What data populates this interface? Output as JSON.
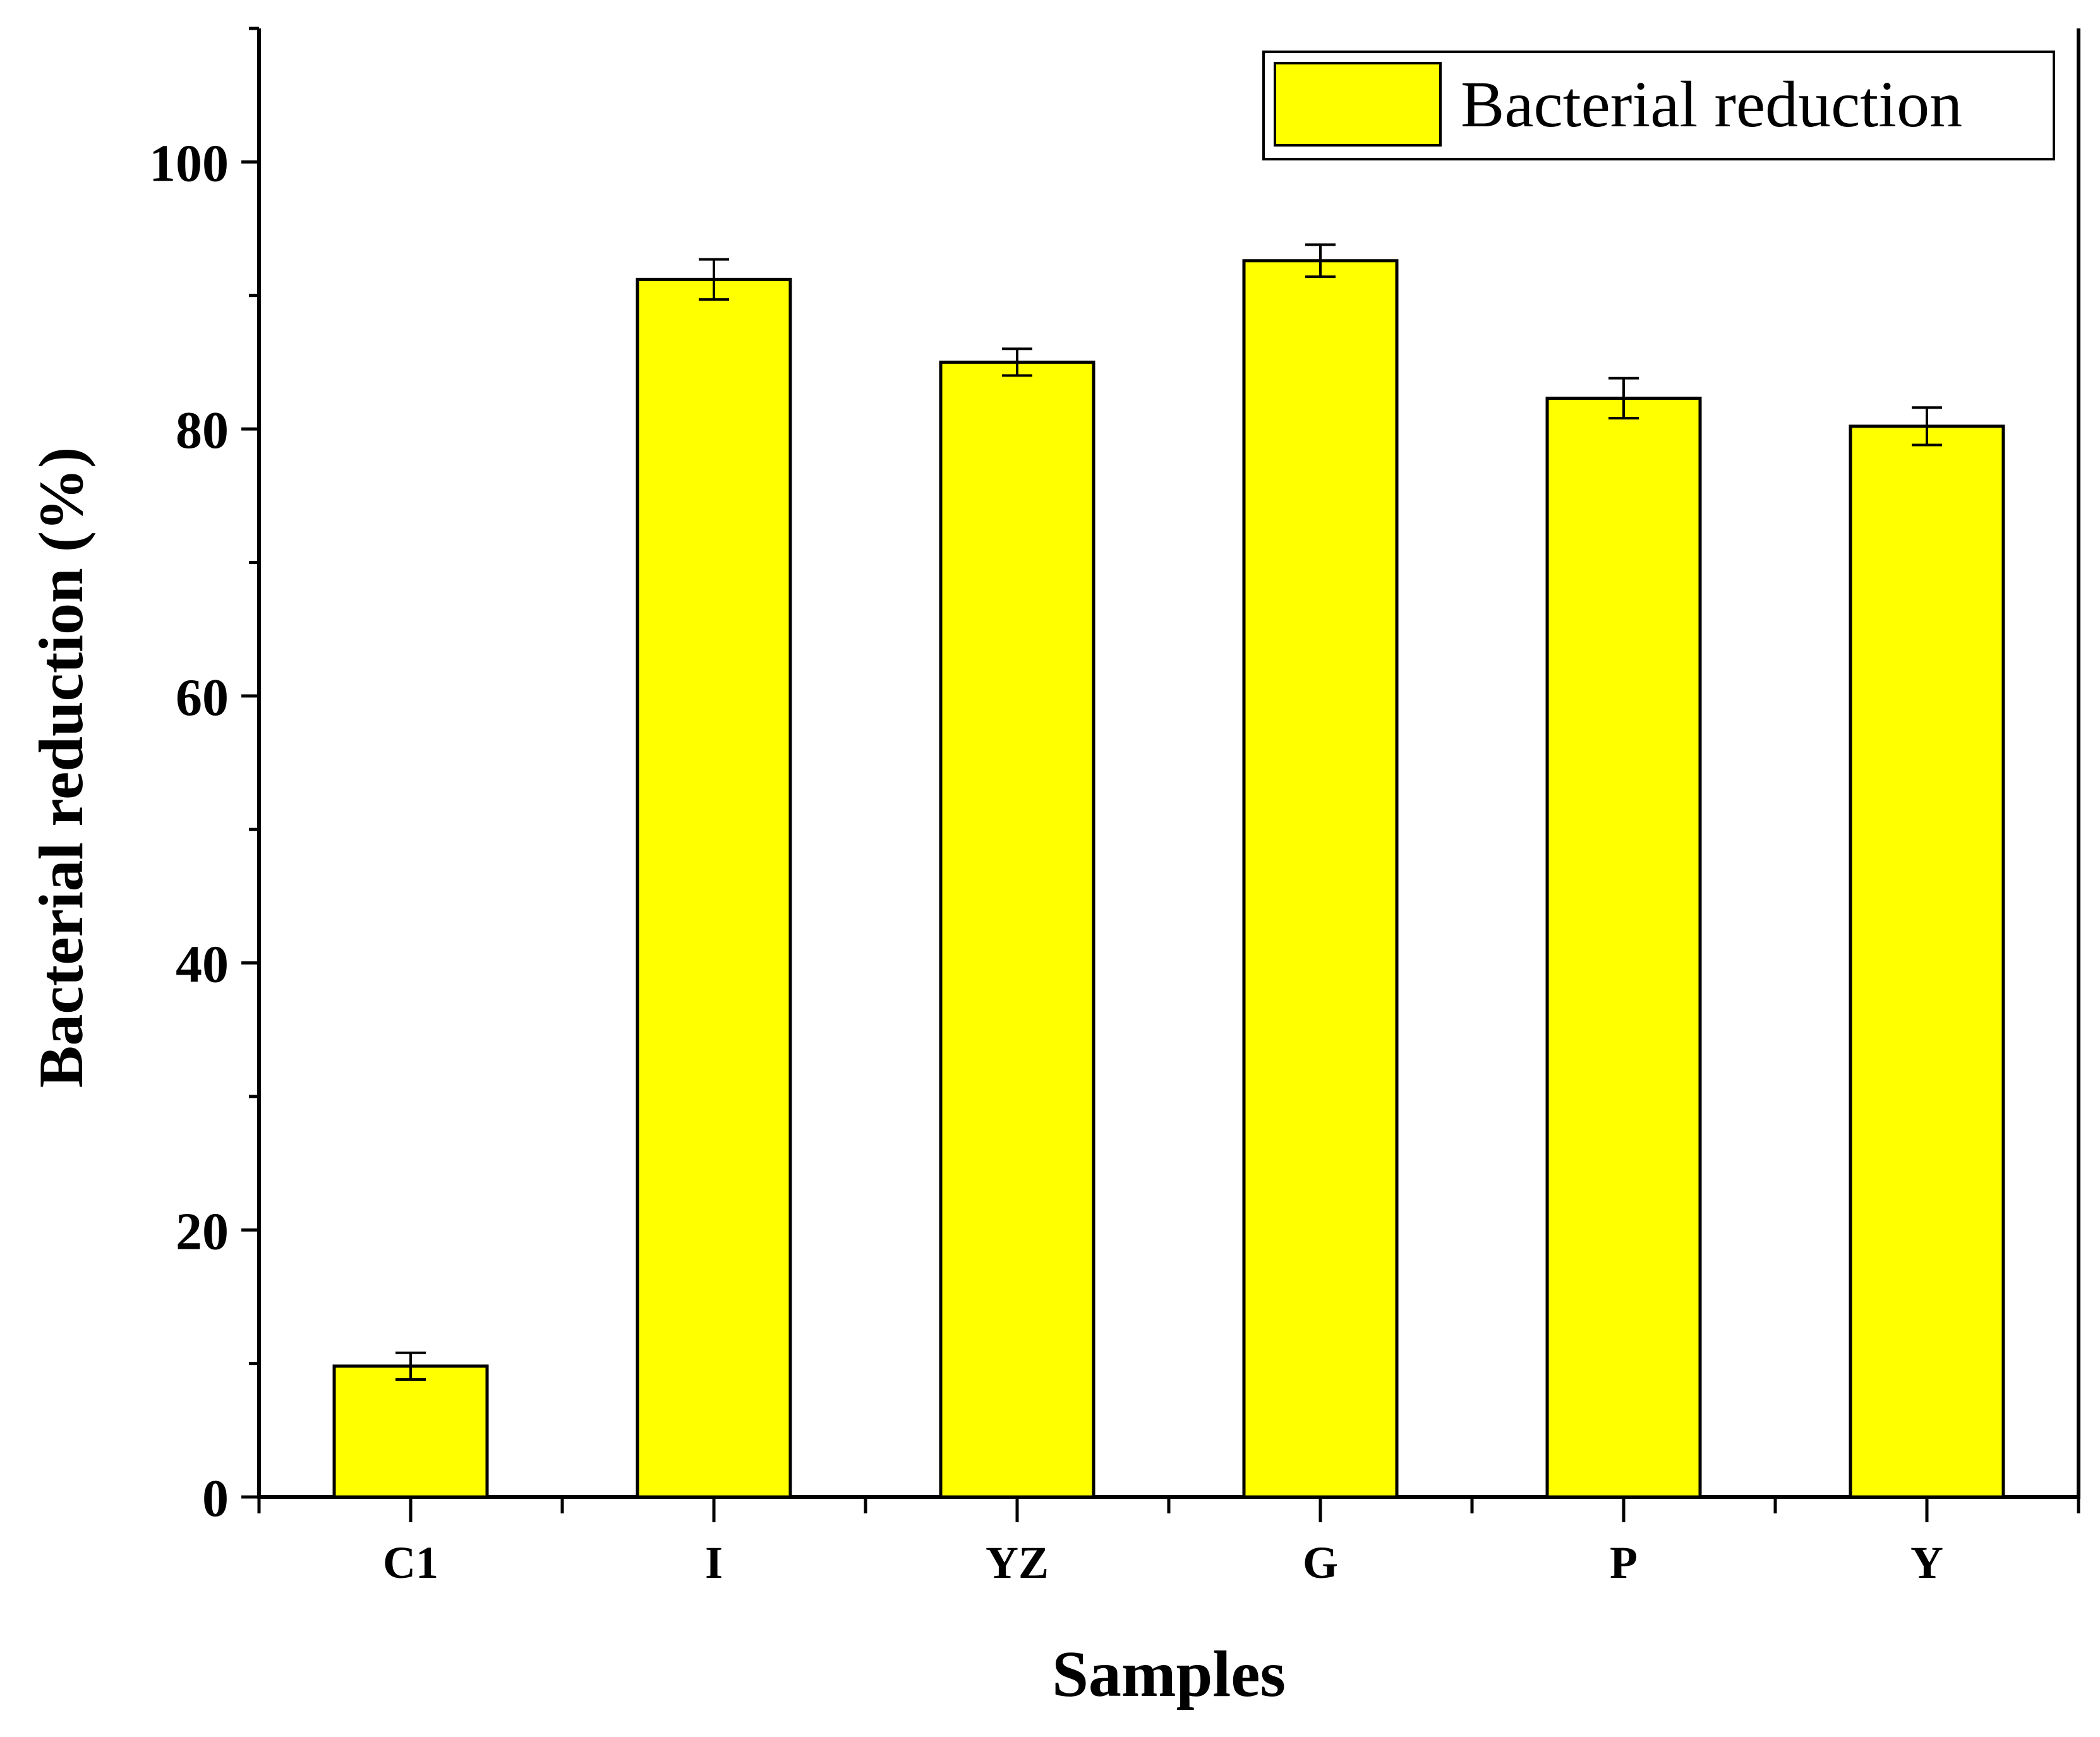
{
  "chart_data": {
    "type": "bar",
    "title": "",
    "xlabel": "Samples",
    "ylabel": "Bacterial reduction (%)",
    "categories": [
      "C1",
      "I",
      "YZ",
      "G",
      "P",
      "Y"
    ],
    "series": [
      {
        "name": "Bacterial reduction",
        "values": [
          9.8,
          91.2,
          85.0,
          92.6,
          82.3,
          80.2
        ],
        "errors": [
          1.0,
          1.5,
          1.0,
          1.2,
          1.5,
          1.4
        ]
      }
    ],
    "ylim": [
      0,
      110
    ],
    "yticks": [
      0,
      20,
      40,
      60,
      80,
      100
    ],
    "grid": false,
    "legend_position": "top-right",
    "colors": {
      "bar_fill": "#ffff00",
      "bar_stroke": "#000000"
    }
  }
}
